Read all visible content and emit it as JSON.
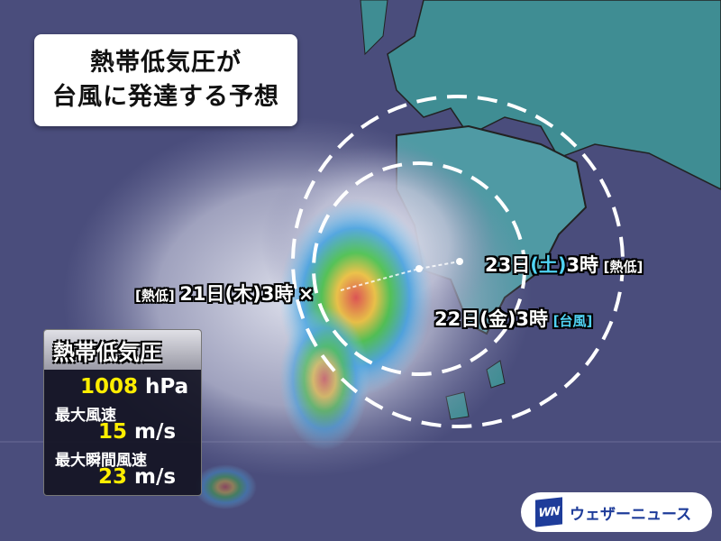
{
  "title": {
    "line1": "熱帯低気圧が",
    "line2": "台風に発達する予想"
  },
  "track": {
    "point1": {
      "tag": "[熱低]",
      "label": "21日(木)3時",
      "marker": "×"
    },
    "point2": {
      "label": "22日(金)3時",
      "tag": "[台風]"
    },
    "point3": {
      "label_day": "23日",
      "label_weekday": "(土)",
      "label_time": "3時",
      "tag": "[熱低]"
    }
  },
  "info": {
    "heading": "熱帯低気圧",
    "pressure_value": "1008",
    "pressure_unit": "hPa",
    "max_wind_label": "最大風速",
    "max_wind_value": "15",
    "max_wind_unit": "m/s",
    "max_gust_label": "最大瞬間風速",
    "max_gust_value": "23",
    "max_gust_unit": "m/s"
  },
  "logo": {
    "mark": "WN",
    "text": "ウェザーニュース"
  },
  "colors": {
    "sea": "#4a4d7c",
    "land": "#3f8d93",
    "highlight": "#4fd2f2",
    "value": "#ffee00"
  }
}
